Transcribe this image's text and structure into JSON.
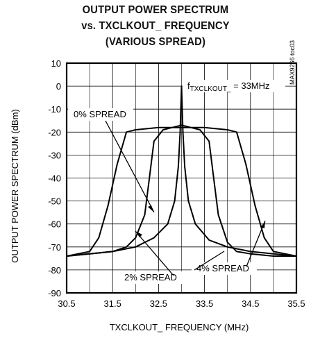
{
  "chart_data": {
    "type": "line",
    "title": [
      "OUTPUT POWER SPECTRUM",
      "vs. TXCLKOUT_ FREQUENCY",
      "(VARIOUS SPREAD)"
    ],
    "xlabel": "TXCLKOUT_ FREQUENCY (MHz)",
    "ylabel": "OUTPUT POWER SPECTRUM (dBm)",
    "xlim": [
      30.5,
      35.5
    ],
    "ylim": [
      -90,
      10
    ],
    "xticks": [
      "30.5",
      "31.5",
      "32.5",
      "33.5",
      "34.5",
      "35.5"
    ],
    "yticks": [
      "10",
      "0",
      "-10",
      "-20",
      "-30",
      "-40",
      "-50",
      "-60",
      "-70",
      "-80",
      "-90"
    ],
    "grid": true,
    "series": [
      {
        "name": "0% SPREAD",
        "x": [
          30.5,
          31.0,
          31.5,
          32.0,
          32.4,
          32.7,
          32.85,
          32.93,
          32.97,
          33.0,
          33.03,
          33.07,
          33.15,
          33.3,
          33.6,
          34.0,
          34.5,
          35.0,
          35.5
        ],
        "y": [
          -74,
          -73,
          -72,
          -70,
          -66,
          -60,
          -50,
          -35,
          -20,
          0,
          -20,
          -35,
          -50,
          -60,
          -67,
          -70,
          -72,
          -73,
          -74
        ]
      },
      {
        "name": "2% SPREAD",
        "x": [
          30.5,
          31.0,
          31.5,
          31.8,
          32.0,
          32.2,
          32.3,
          32.4,
          32.6,
          32.8,
          33.0,
          33.2,
          33.4,
          33.6,
          33.7,
          33.8,
          34.0,
          34.2,
          34.5,
          35.0,
          35.5
        ],
        "y": [
          -74,
          -73,
          -72,
          -70,
          -66,
          -56,
          -40,
          -24,
          -19,
          -18,
          -17,
          -18,
          -19,
          -24,
          -40,
          -56,
          -68,
          -72,
          -73,
          -74,
          -74
        ]
      },
      {
        "name": "4% SPREAD",
        "x": [
          30.5,
          31.0,
          31.2,
          31.4,
          31.6,
          31.8,
          32.0,
          32.5,
          33.0,
          33.5,
          34.0,
          34.2,
          34.4,
          34.6,
          34.8,
          35.0,
          35.5
        ],
        "y": [
          -74,
          -72,
          -66,
          -52,
          -34,
          -20,
          -19,
          -18,
          -18,
          -18,
          -19,
          -20,
          -34,
          -52,
          -66,
          -72,
          -74
        ]
      }
    ],
    "annotations": {
      "freq_prefix": "f",
      "freq_subscript": "TXCLKOUT_",
      "freq_suffix": " = 33MHz",
      "spread0": "0% SPREAD",
      "spread2": "2% SPREAD",
      "spread4": "4% SPREAD",
      "code": "MAX9266 toc03"
    }
  }
}
